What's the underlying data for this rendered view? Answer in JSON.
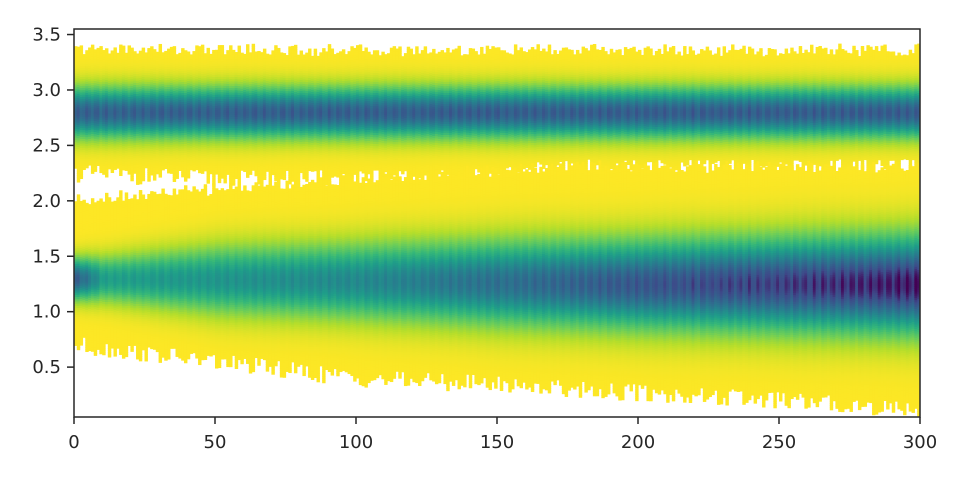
{
  "chart_data": {
    "type": "heatmap",
    "title": "",
    "xlabel": "",
    "ylabel": "",
    "xlim": [
      0,
      300
    ],
    "ylim": [
      0.05,
      3.55
    ],
    "x_ticks": [
      {
        "value": 0,
        "label": "0"
      },
      {
        "value": 50,
        "label": "50"
      },
      {
        "value": 100,
        "label": "100"
      },
      {
        "value": 150,
        "label": "150"
      },
      {
        "value": 200,
        "label": "200"
      },
      {
        "value": 250,
        "label": "250"
      },
      {
        "value": 300,
        "label": "300"
      }
    ],
    "y_ticks": [
      {
        "value": 0.5,
        "label": "0.5"
      },
      {
        "value": 1.0,
        "label": "1.0"
      },
      {
        "value": 1.5,
        "label": "1.5"
      },
      {
        "value": 2.0,
        "label": "2.0"
      },
      {
        "value": 2.5,
        "label": "2.5"
      },
      {
        "value": 3.0,
        "label": "3.0"
      },
      {
        "value": 3.5,
        "label": "3.5"
      }
    ],
    "colormap": "viridis",
    "colors": {
      "low": "#fde725",
      "mid": "#21918c",
      "high": "#440154"
    },
    "grid": false,
    "x_step": 1,
    "bands": [
      {
        "name": "upper",
        "center": [
          {
            "x": 0,
            "y": 2.8
          },
          {
            "x": 300,
            "y": 2.8
          }
        ],
        "width": [
          {
            "x": 0,
            "y": 0.22
          },
          {
            "x": 300,
            "y": 0.22
          }
        ],
        "peak_intensity": [
          {
            "x": 0,
            "y": 0.78
          },
          {
            "x": 300,
            "y": 0.8
          }
        ],
        "lower_edge": [
          {
            "x": 0,
            "y": 2.25
          },
          {
            "x": 50,
            "y": 2.2
          },
          {
            "x": 100,
            "y": 2.2
          },
          {
            "x": 150,
            "y": 2.22
          },
          {
            "x": 170,
            "y": 2.3
          },
          {
            "x": 300,
            "y": 2.3
          }
        ],
        "upper_edge": [
          {
            "x": 0,
            "y": 3.36
          },
          {
            "x": 100,
            "y": 3.35
          },
          {
            "x": 200,
            "y": 3.35
          },
          {
            "x": 300,
            "y": 3.35
          }
        ]
      },
      {
        "name": "lower",
        "center": [
          {
            "x": 0,
            "y": 1.3
          },
          {
            "x": 100,
            "y": 1.28
          },
          {
            "x": 200,
            "y": 1.25
          },
          {
            "x": 300,
            "y": 1.25
          }
        ],
        "width": [
          {
            "x": 0,
            "y": 0.18
          },
          {
            "x": 50,
            "y": 0.3
          },
          {
            "x": 150,
            "y": 0.37
          },
          {
            "x": 300,
            "y": 0.42
          }
        ],
        "peak_intensity": [
          {
            "x": 0,
            "y": 0.8
          },
          {
            "x": 10,
            "y": 0.5
          },
          {
            "x": 100,
            "y": 0.6
          },
          {
            "x": 200,
            "y": 0.82
          },
          {
            "x": 300,
            "y": 0.97
          }
        ],
        "lower_edge": [
          {
            "x": 0,
            "y": 0.7
          },
          {
            "x": 50,
            "y": 0.55
          },
          {
            "x": 100,
            "y": 0.4
          },
          {
            "x": 150,
            "y": 0.35
          },
          {
            "x": 200,
            "y": 0.27
          },
          {
            "x": 250,
            "y": 0.2
          },
          {
            "x": 300,
            "y": 0.12
          }
        ],
        "upper_edge": [
          {
            "x": 0,
            "y": 2.0
          },
          {
            "x": 50,
            "y": 2.1
          },
          {
            "x": 170,
            "y": 2.3
          },
          {
            "x": 300,
            "y": 2.3
          }
        ]
      }
    ]
  }
}
